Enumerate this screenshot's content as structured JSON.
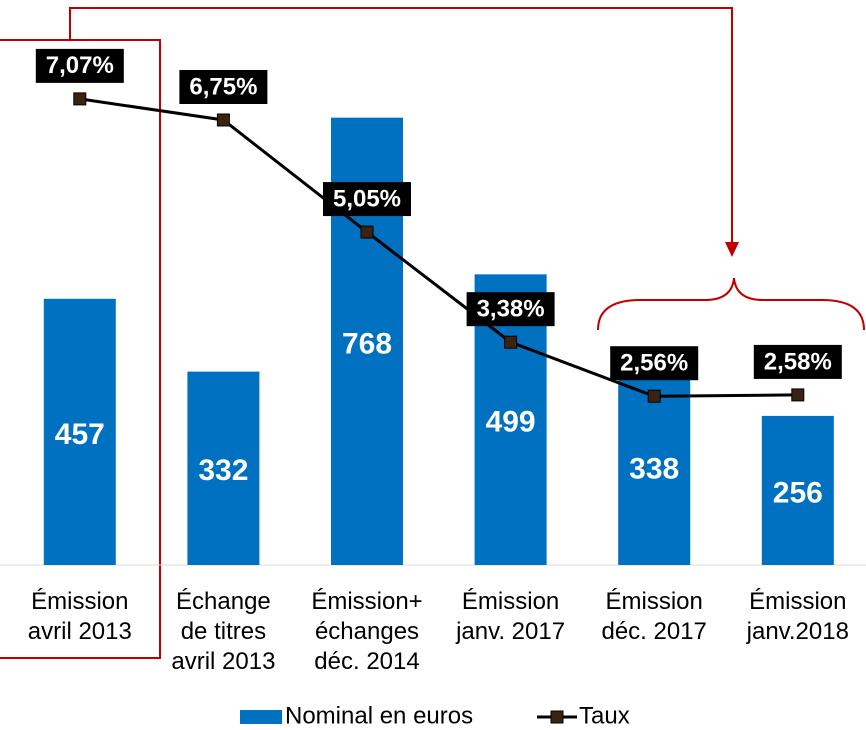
{
  "chart_data": {
    "type": "bar",
    "categories": [
      "Émission\navril 2013",
      "Échange\nde titres\navril 2013",
      "Émission+\néchanges\ndéc. 2014",
      "Émission\njanv. 2017",
      "Émission\ndéc. 2017",
      "Émission\njanv.2018"
    ],
    "series": [
      {
        "name": "Nominal en euros",
        "type": "bar",
        "color": "#0070c0",
        "values": [
          457,
          332,
          768,
          499,
          338,
          256
        ]
      },
      {
        "name": "Taux",
        "type": "line",
        "axis": "y2",
        "color": "#000000",
        "marker_color": "#3b2314",
        "values": [
          7.07,
          6.75,
          5.05,
          3.38,
          2.56,
          2.58
        ],
        "value_labels": [
          "7,07%",
          "6,75%",
          "5,05%",
          "3,38%",
          "2,56%",
          "2,58%"
        ]
      }
    ],
    "ylim": [
      0,
      970
    ],
    "y2lim": [
      0,
      8.57
    ],
    "legend": "bottom"
  }
}
